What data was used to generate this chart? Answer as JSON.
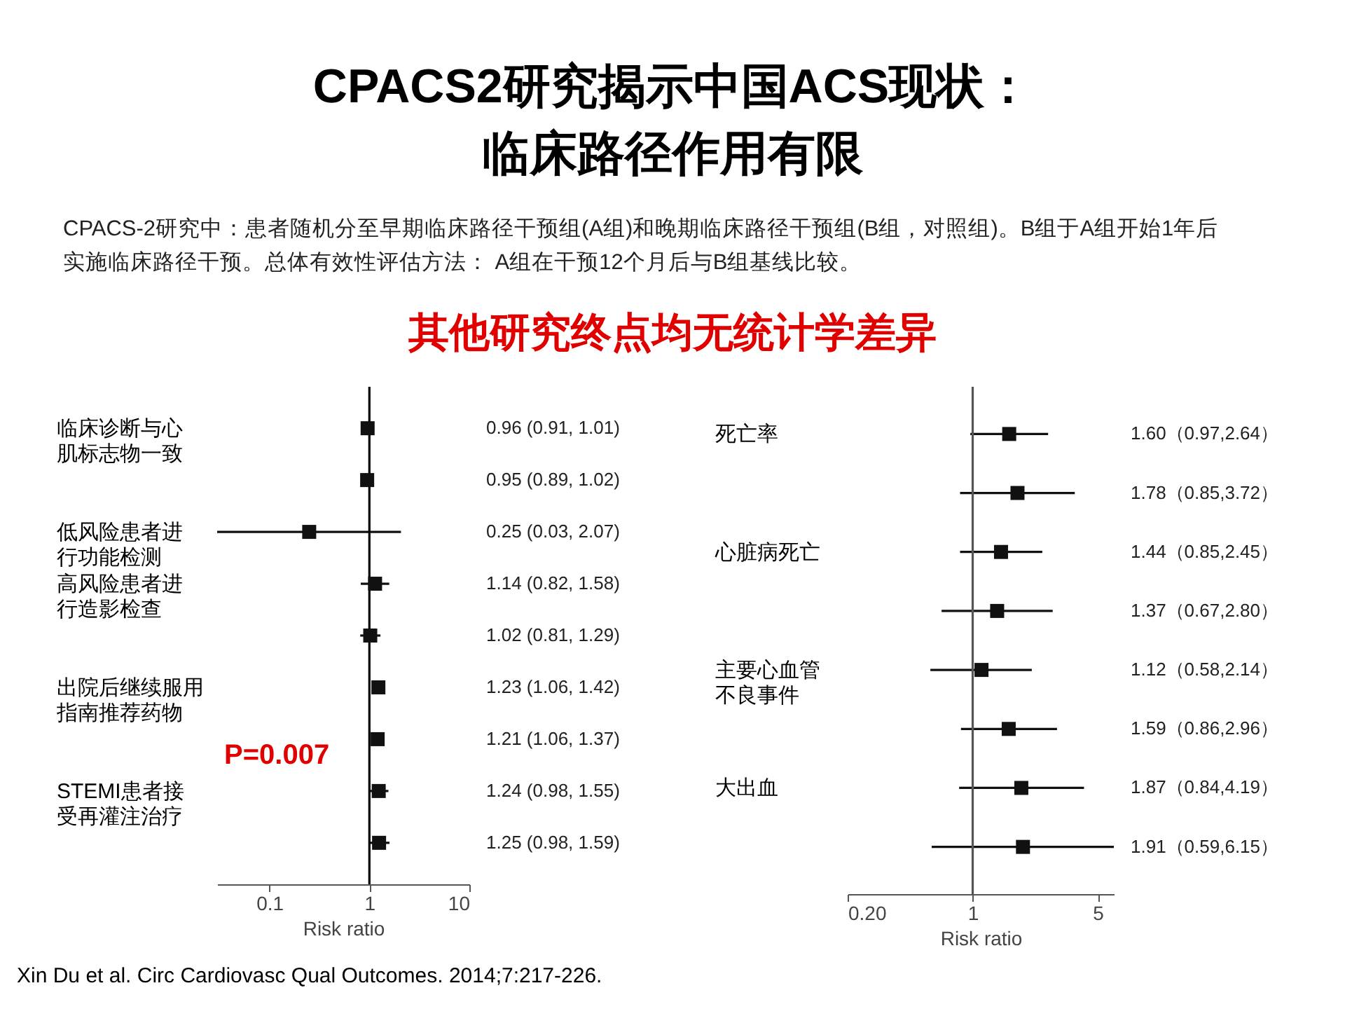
{
  "chart_data": [
    {
      "type": "scatter",
      "title": "CPACS2研究揭示中国ACS现状：临床路径作用有限",
      "subtitle": "CPACS-2研究中：患者随机分至早期临床路径干预组(A组)和晚期临床路径干预组(B组，对照组)。B组于A组开始1年后实施临床路径干预。总体有效性评估方法： A组在干预12个月后与B组基线比较。",
      "xlabel": "Risk ratio",
      "orientation": "horizontal",
      "log": "x",
      "marker": "square",
      "xlim": [
        0.03,
        10
      ],
      "xticks": [
        0.1,
        1,
        10
      ],
      "annotations": [
        "其他研究终点均无统计学差异",
        "P=0.007",
        "Xin Du et al. Circ Cardiovasc Qual Outcomes. 2014;7:217-226."
      ],
      "ref_lines": [
        {
          "axis": "x",
          "value": 1,
          "color": "#000000"
        }
      ],
      "categories": [
        "临床诊断与心肌标志物一致",
        null,
        "低风险患者进行功能检测",
        "高风险患者进行造影检查",
        null,
        "出院后继续服用指南推荐药物",
        null,
        "STEMI患者接受再灌注治疗",
        null
      ],
      "series": [
        {
          "color": "#111111",
          "values": [
            0.96,
            0.95,
            0.25,
            1.14,
            1.02,
            1.23,
            1.21,
            1.24,
            1.25
          ],
          "errors": [
            null,
            null,
            [
              0.03,
              2.07
            ],
            [
              0.82,
              1.58
            ],
            [
              0.81,
              1.29
            ],
            [
              1.06,
              1.42
            ],
            [
              1.06,
              1.37
            ],
            [
              0.98,
              1.55
            ],
            [
              0.98,
              1.59
            ]
          ],
          "value_labels": [
            "0.96 (0.91, 1.01)",
            "0.95 (0.89, 1.02)",
            "0.25 (0.03, 2.07)",
            "1.14 (0.82, 1.58)",
            "1.02 (0.81, 1.29)",
            "1.23 (1.06, 1.42)",
            "1.21 (1.06, 1.37)",
            "1.24 (0.98, 1.55)",
            "1.25 (0.98, 1.59)"
          ]
        }
      ]
    },
    {
      "type": "scatter",
      "xlabel": "Risk ratio",
      "orientation": "horizontal",
      "log": "x",
      "marker": "square",
      "xlim": [
        0.2,
        6.15
      ],
      "xticks": [
        {
          "value": 0.2,
          "label": "0.20"
        },
        1,
        5
      ],
      "ref_lines": [
        {
          "axis": "x",
          "value": 1,
          "color": "#555555"
        }
      ],
      "categories": [
        "死亡率",
        null,
        "心脏病死亡",
        null,
        "主要心血管不良事件",
        null,
        "大出血",
        null
      ],
      "series": [
        {
          "color": "#111111",
          "values": [
            1.6,
            1.78,
            1.44,
            1.37,
            1.12,
            1.59,
            1.87,
            1.91
          ],
          "errors": [
            [
              0.97,
              2.64
            ],
            [
              0.85,
              3.72
            ],
            [
              0.85,
              2.45
            ],
            [
              0.67,
              2.8
            ],
            [
              0.58,
              2.14
            ],
            [
              0.86,
              2.96
            ],
            [
              0.84,
              4.19
            ],
            [
              0.59,
              6.15
            ]
          ],
          "value_labels": [
            "1.60（0.97,2.64）",
            "1.78（0.85,3.72）",
            "1.44（0.85,2.45）",
            "1.37（0.67,2.80）",
            "1.12（0.58,2.14）",
            "1.59（0.86,2.96）",
            "1.87（0.84,4.19）",
            "1.91（0.59,6.15）"
          ]
        }
      ]
    }
  ]
}
